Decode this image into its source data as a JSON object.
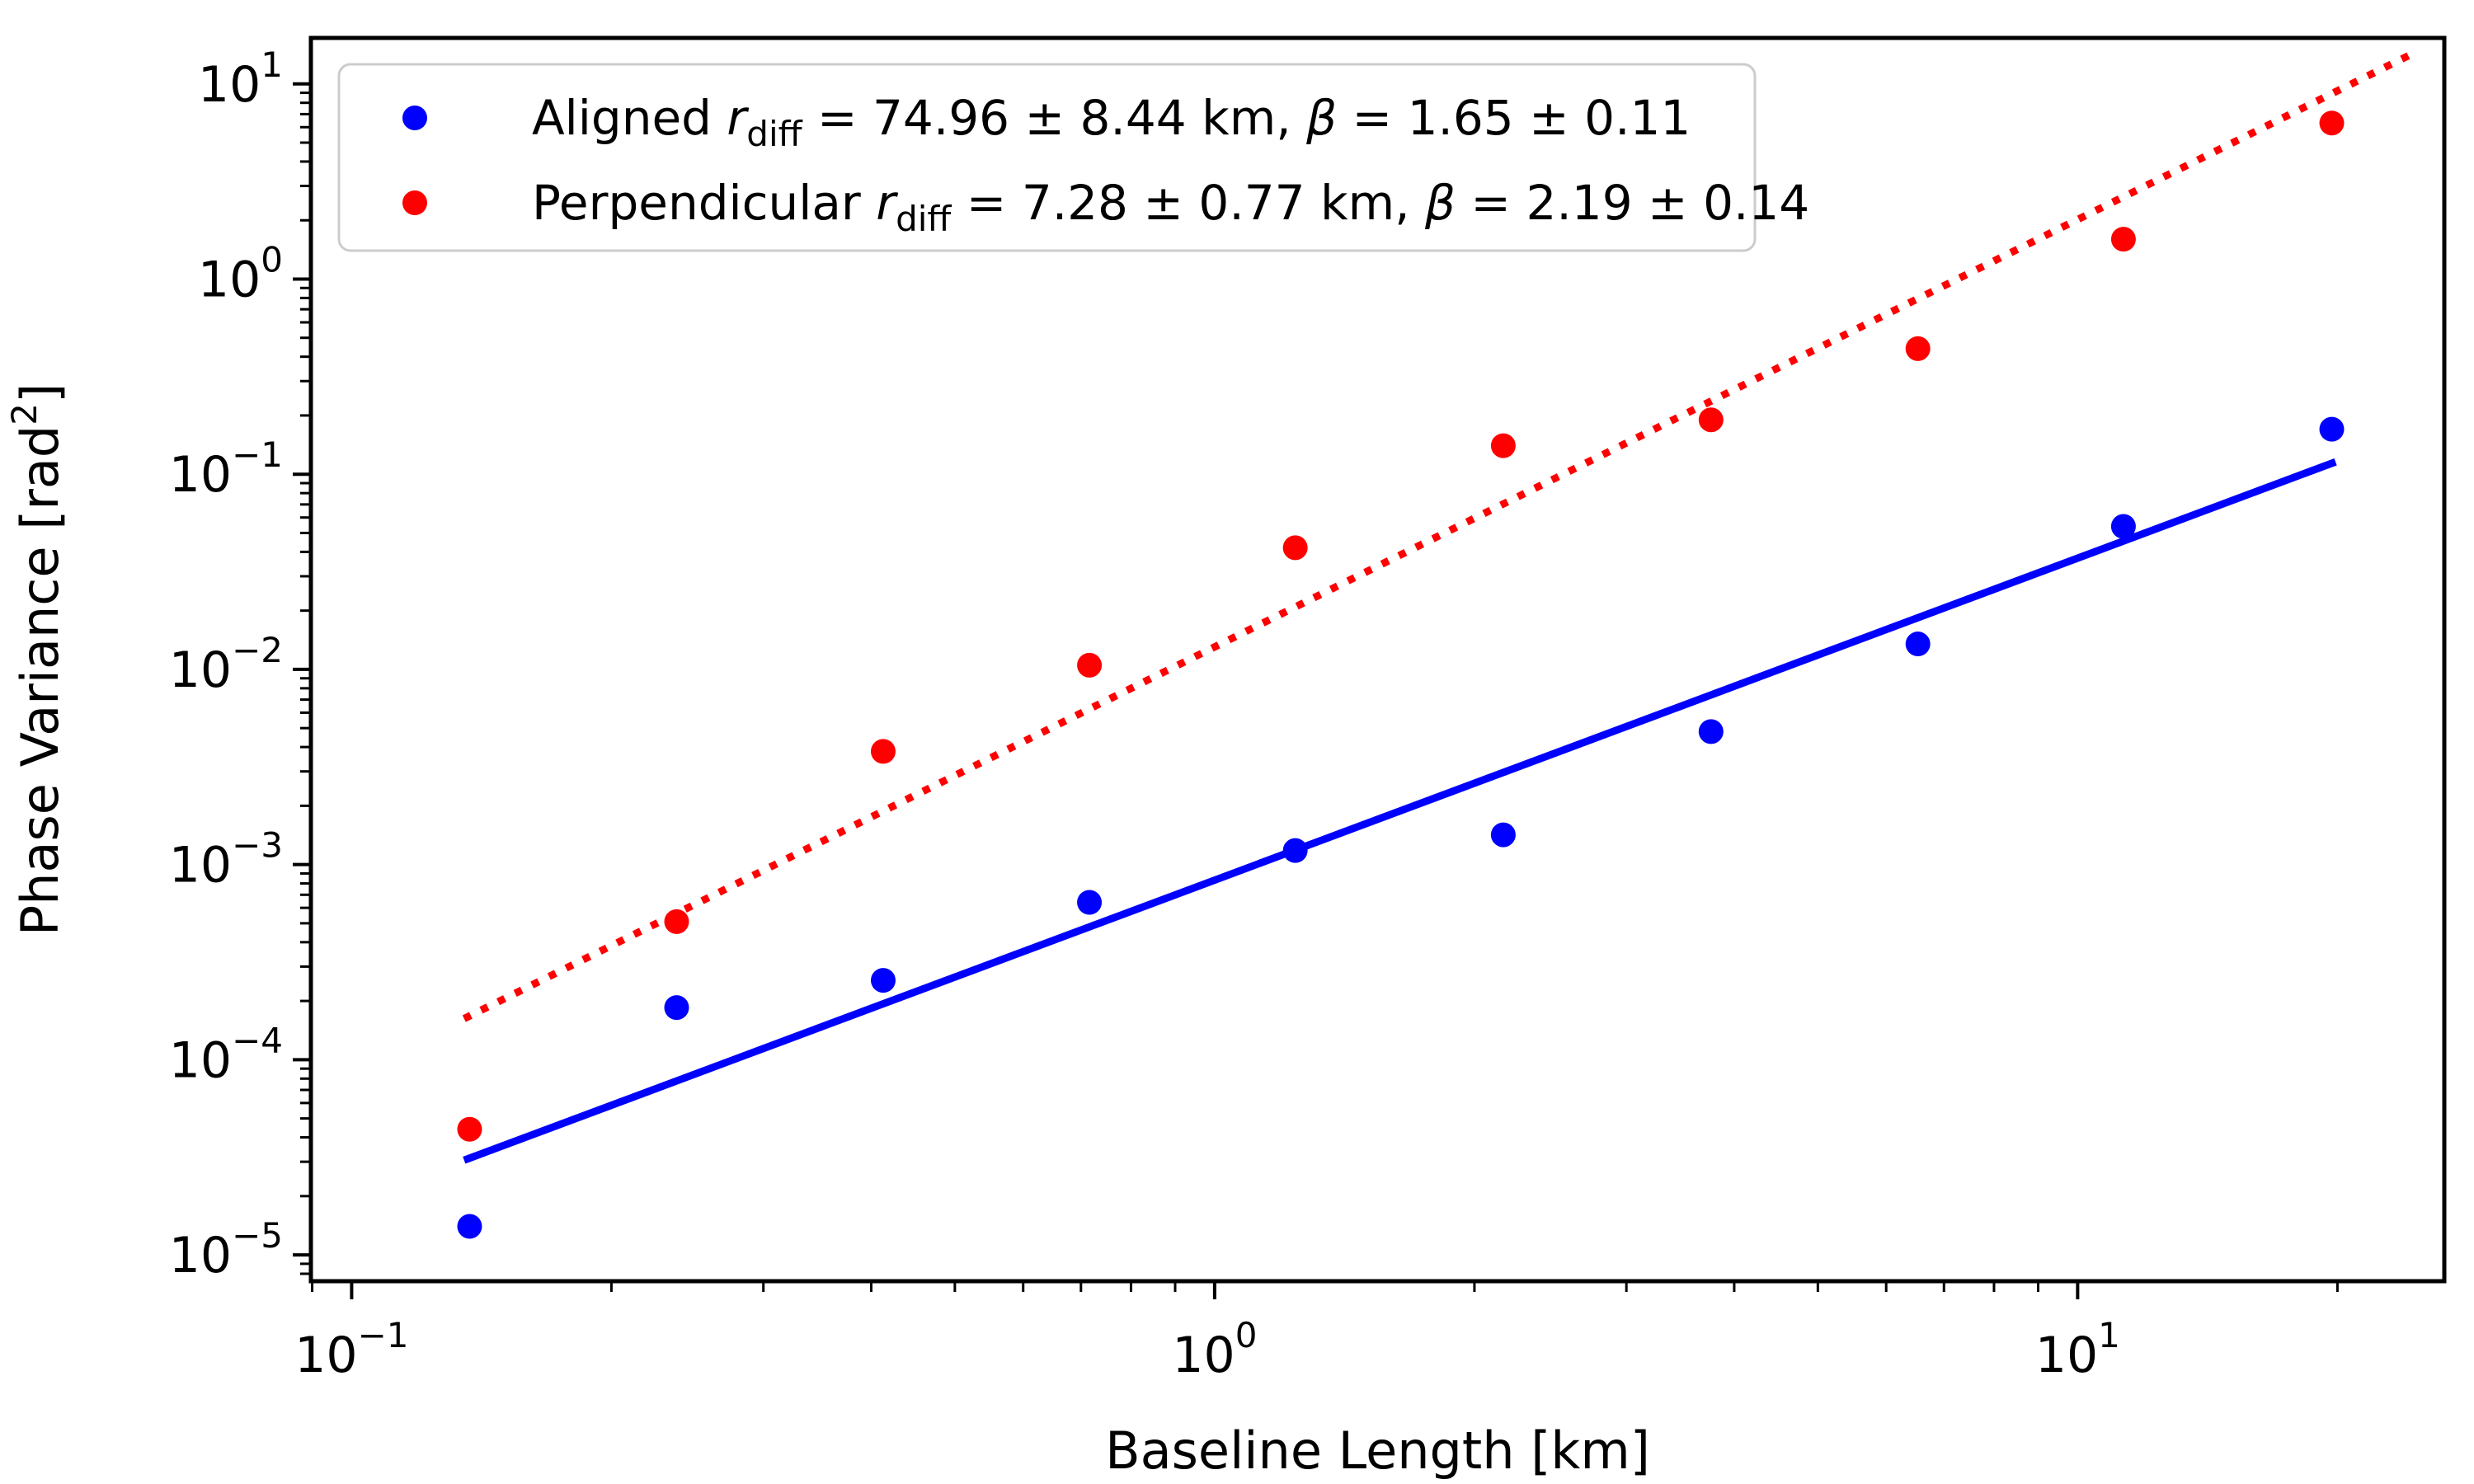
{
  "chart_data": {
    "type": "scatter",
    "title": "",
    "xlabel": "Baseline Length [km]",
    "ylabel_segments": [
      {
        "t": "Phase Variance [rad",
        "s": "p"
      },
      {
        "t": "2",
        "s": "sup"
      },
      {
        "t": "]",
        "s": "p"
      }
    ],
    "xscale": "log",
    "yscale": "log",
    "xlim": [
      0.0897,
      26.6
    ],
    "ylim": [
      7.33e-06,
      17.2
    ],
    "x_tick_exponents": [
      -1,
      0,
      1
    ],
    "y_tick_exponents": [
      1,
      0,
      -1,
      -2,
      -3,
      -4,
      -5
    ],
    "tick_base": "10",
    "grid": false,
    "x": [
      0.137,
      0.238,
      0.413,
      0.716,
      1.24,
      2.16,
      3.76,
      6.53,
      11.3,
      19.7
    ],
    "series": [
      {
        "name": "Aligned",
        "color": "#0000ff",
        "marker": "circle",
        "values": [
          1.4e-05,
          0.000185,
          0.000255,
          0.00064,
          0.00118,
          0.00142,
          0.0048,
          0.0135,
          0.054,
          0.17
        ],
        "fit_line": {
          "style": "solid",
          "beta_slope": 1.65,
          "log10_intercept": -3.08,
          "x_start": 0.135,
          "x_end": 19.9
        },
        "r_diff_km": "74.96 ± 8.44",
        "beta": "1.65 ± 0.11"
      },
      {
        "name": "Perpendicular",
        "color": "#ff0000",
        "marker": "circle",
        "values": [
          4.4e-05,
          0.00051,
          0.0038,
          0.0105,
          0.042,
          0.14,
          0.19,
          0.44,
          1.6,
          6.3
        ],
        "fit_line": {
          "style": "dotted",
          "beta_slope": 2.19,
          "log10_intercept": -1.885,
          "x_start": 0.135,
          "x_end": 24.4
        },
        "r_diff_km": "7.28 ± 0.77",
        "beta": "2.19 ± 0.14"
      }
    ],
    "legend": {
      "position": "upper left",
      "entries": [
        {
          "series": "Aligned",
          "color": "#0000ff",
          "segments": [
            {
              "t": "Aligned ",
              "s": "p"
            },
            {
              "t": "r",
              "s": "i"
            },
            {
              "t": "diff",
              "s": "sub"
            },
            {
              "t": " = 74.96 ± 8.44 km, ",
              "s": "p"
            },
            {
              "t": "β",
              "s": "i"
            },
            {
              "t": " = 1.65 ± 0.11",
              "s": "p"
            }
          ]
        },
        {
          "series": "Perpendicular",
          "color": "#ff0000",
          "segments": [
            {
              "t": "Perpendicular ",
              "s": "p"
            },
            {
              "t": "r",
              "s": "i"
            },
            {
              "t": "diff",
              "s": "sub"
            },
            {
              "t": " = 7.28 ± 0.77 km, ",
              "s": "p"
            },
            {
              "t": "β",
              "s": "i"
            },
            {
              "t": " = 2.19 ± 0.14",
              "s": "p"
            }
          ]
        }
      ]
    },
    "axis_color": "#000000",
    "background_color": "#ffffff",
    "legend_border_color": "#cccccc"
  }
}
